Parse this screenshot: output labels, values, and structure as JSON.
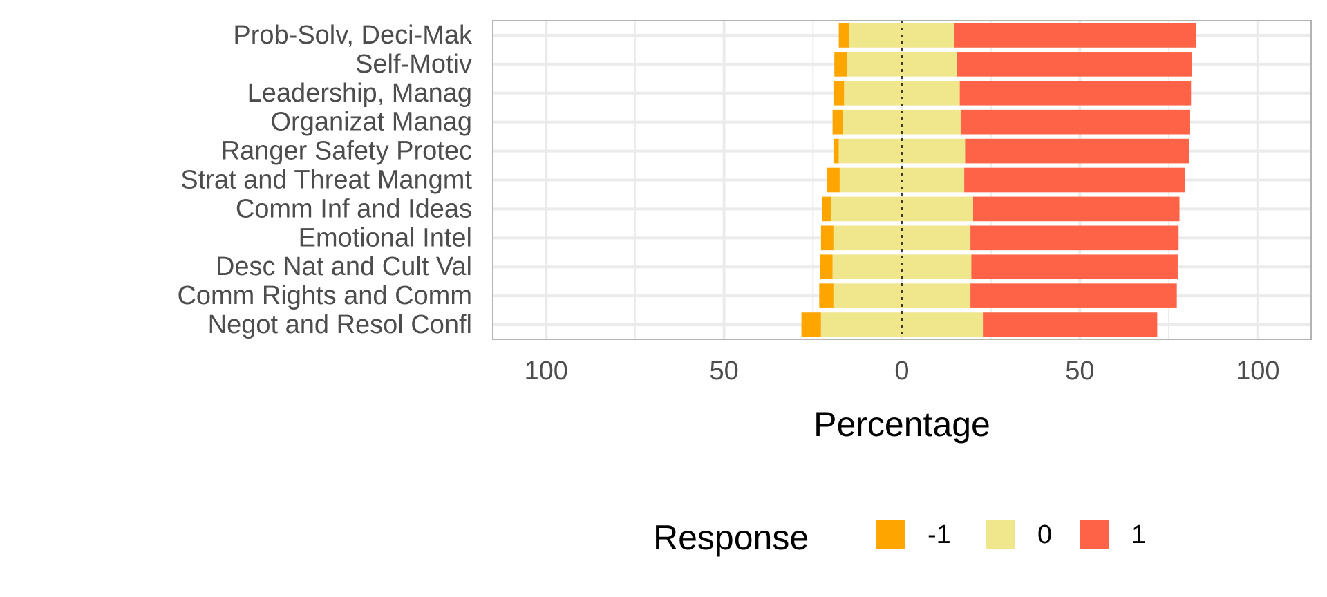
{
  "chart_data": {
    "type": "bar",
    "orientation": "horizontal",
    "stacked": "diverging",
    "categories": [
      "Prob-Solv, Deci-Mak",
      "Self-Motiv",
      "Leadership, Manag",
      "Organizat Manag",
      "Ranger Safety Protec",
      "Strat and Threat Mangmt",
      "Comm Inf and Ideas",
      "Emotional Intel",
      "Desc Nat and Cult Val",
      "Comm Rights and Comm",
      "Negot and Resol Confl"
    ],
    "series": [
      {
        "name": "-1",
        "color": "#FFA500",
        "values": [
          3,
          3.5,
          3,
          3,
          1.5,
          3.5,
          2.5,
          3.5,
          3.5,
          4,
          5.5
        ]
      },
      {
        "name": "0",
        "color": "#F0E68C",
        "values": [
          29.5,
          31,
          32.5,
          33,
          35.5,
          35,
          40,
          38.5,
          39,
          38.5,
          45.5
        ]
      },
      {
        "name": "1",
        "color": "#FF6347",
        "values": [
          68,
          66,
          65,
          64.5,
          63,
          62,
          58,
          58.5,
          58,
          58,
          49
        ]
      }
    ],
    "xlabel": "Percentage",
    "ylabel": "",
    "xlim": [
      -115,
      115
    ],
    "x_ticks": [
      -100,
      -50,
      0,
      50,
      100
    ],
    "x_tick_labels": [
      "100",
      "50",
      "0",
      "50",
      "100"
    ],
    "grid": true,
    "legend": {
      "title": "Response",
      "position": "bottom",
      "entries": [
        "-1",
        "0",
        "1"
      ]
    }
  }
}
